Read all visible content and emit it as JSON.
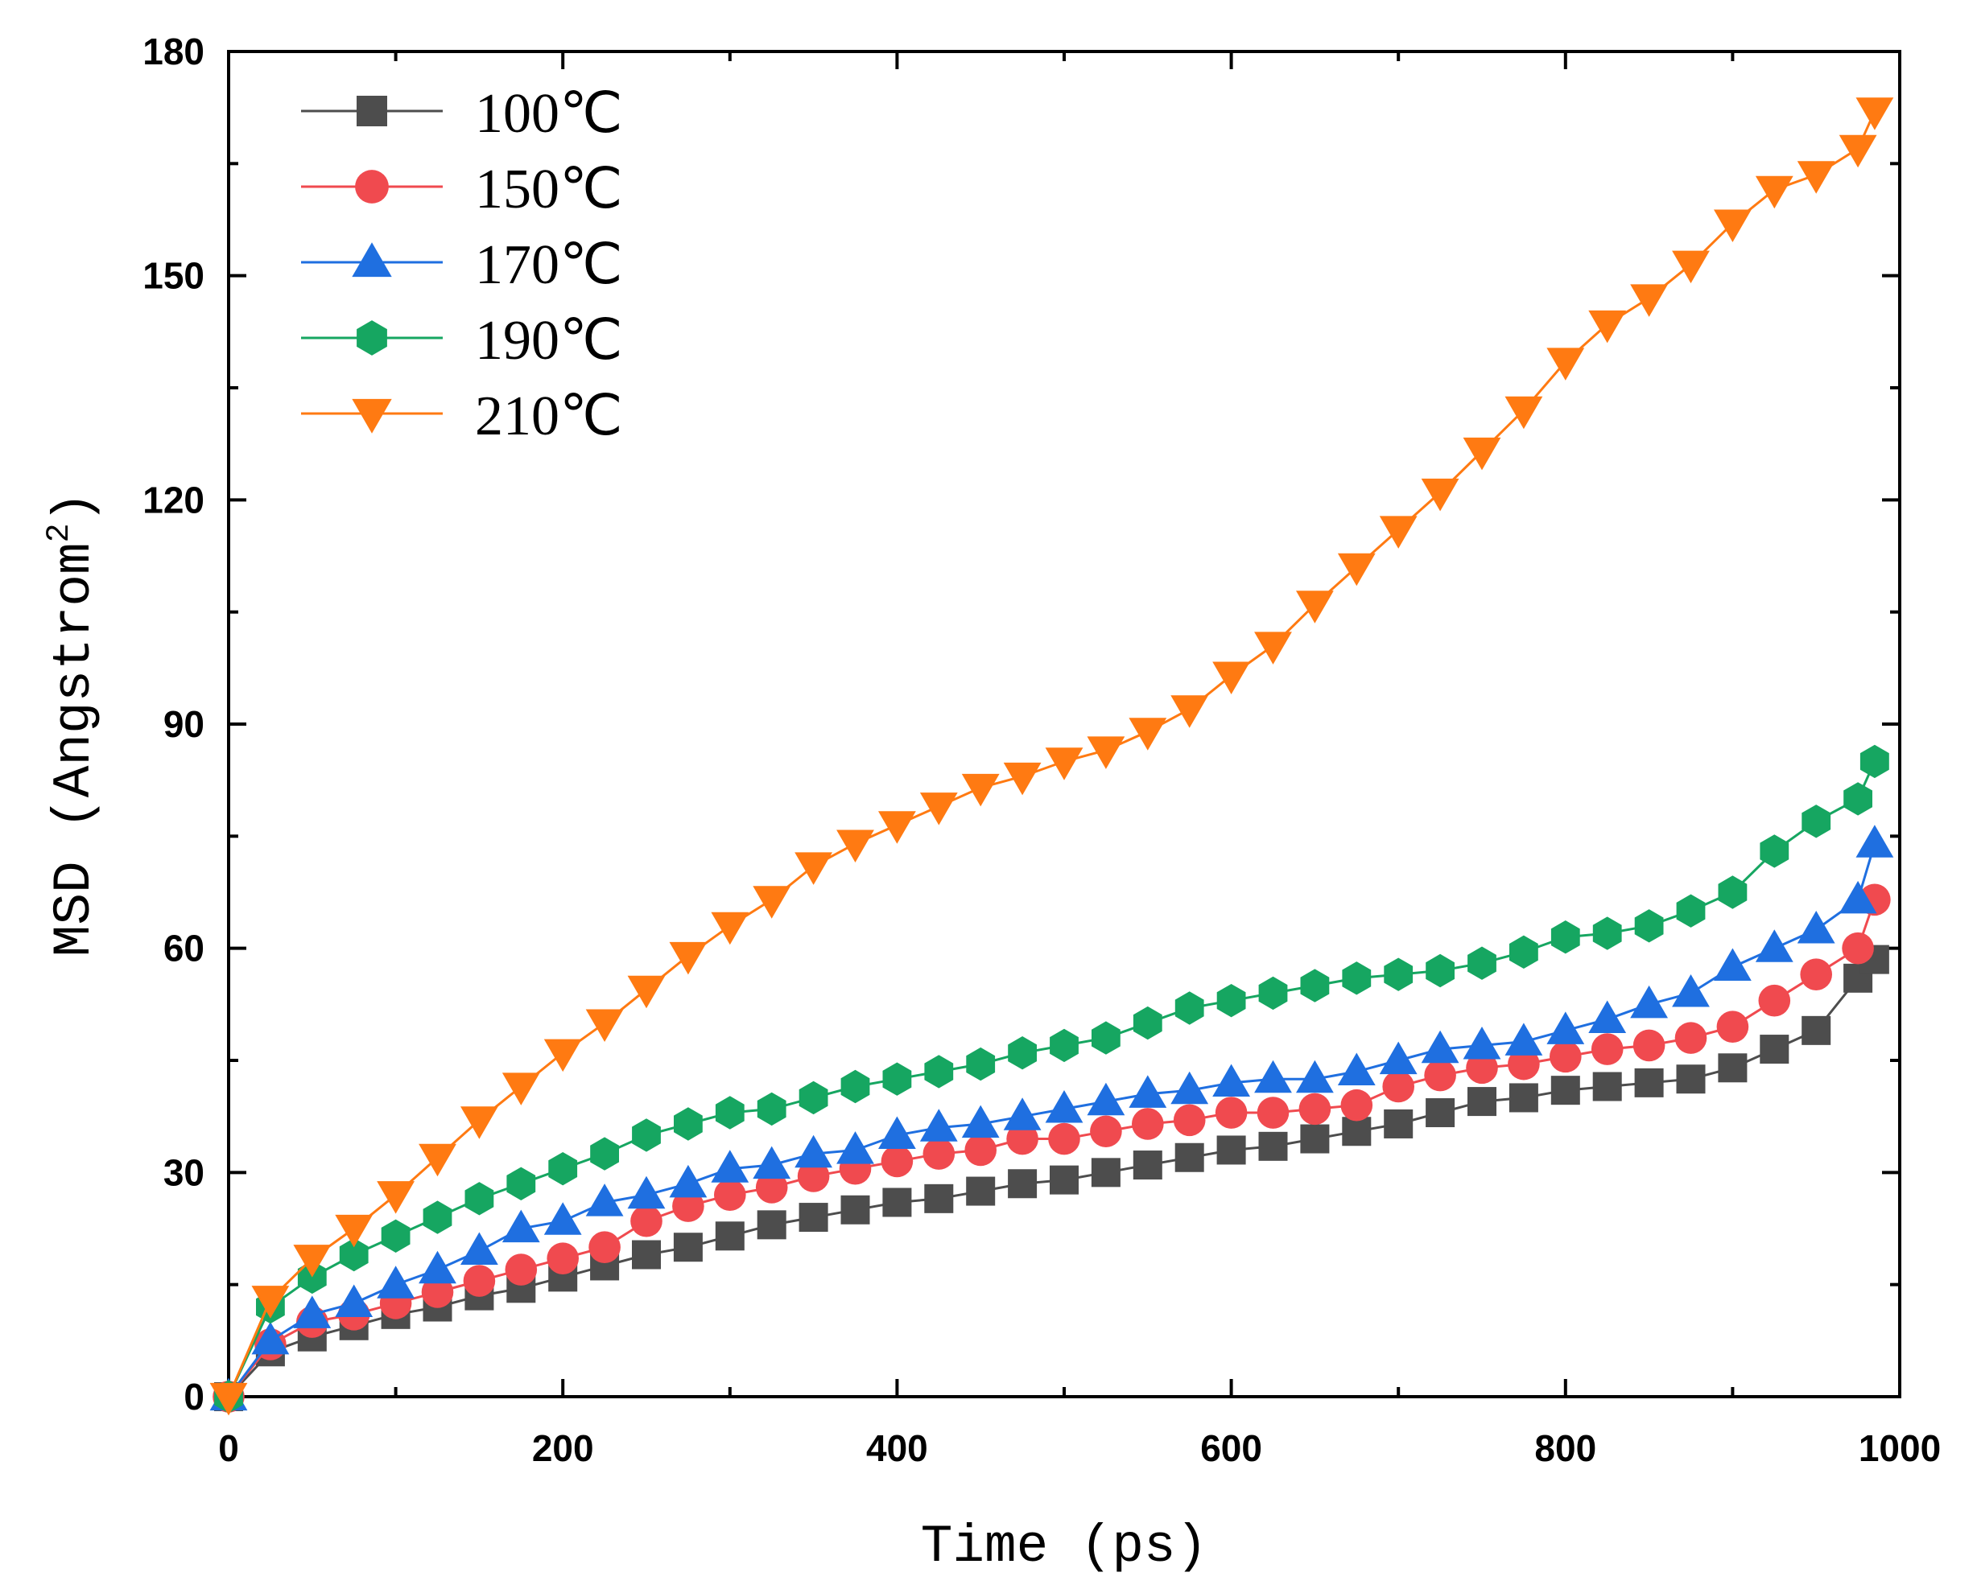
{
  "chart_data": {
    "type": "line",
    "xlabel": "Time (ps)",
    "ylabel_main": "MSD (Angstrom",
    "ylabel_sup": "2",
    "ylabel_close": ")",
    "xlim": [
      0,
      1000
    ],
    "ylim": [
      0,
      180
    ],
    "xticks": [
      "0",
      "200",
      "400",
      "600",
      "800",
      "1000"
    ],
    "yticks": [
      "0",
      "30",
      "60",
      "90",
      "120",
      "150",
      "180"
    ],
    "grid": false,
    "legend_position": "top-left",
    "x": [
      0,
      25,
      50,
      75,
      100,
      125,
      150,
      175,
      200,
      225,
      250,
      275,
      300,
      325,
      350,
      375,
      400,
      425,
      450,
      475,
      500,
      525,
      550,
      575,
      600,
      625,
      650,
      675,
      700,
      725,
      750,
      775,
      800,
      825,
      850,
      875,
      900,
      925,
      950,
      975,
      985
    ],
    "series": [
      {
        "name": "100℃",
        "color": "#4d4d4d",
        "marker": "square",
        "values": [
          0,
          6,
          8,
          9.5,
          11,
          12,
          13.5,
          14.5,
          16,
          17.5,
          19,
          20,
          21.5,
          23,
          24,
          25,
          26,
          26.5,
          27.5,
          28.5,
          29,
          30,
          31,
          32,
          33,
          33.5,
          34.5,
          35.5,
          36.5,
          38,
          39.5,
          40,
          41,
          41.5,
          42,
          42.5,
          44,
          46.5,
          49,
          56,
          58.5
        ]
      },
      {
        "name": "150℃",
        "color": "#f04a4f",
        "marker": "circle",
        "values": [
          0,
          7,
          10,
          11,
          12.5,
          14,
          15.5,
          17,
          18.5,
          20,
          23.5,
          25.5,
          27,
          28,
          29.5,
          30.5,
          31.5,
          32.5,
          33,
          34.5,
          34.5,
          35.5,
          36.5,
          37,
          38,
          38,
          38.5,
          39,
          41.5,
          43,
          44,
          44.5,
          45.5,
          46.5,
          47,
          48,
          49.5,
          53,
          56.5,
          60,
          66.5
        ]
      },
      {
        "name": "170℃",
        "color": "#1f6fe0",
        "marker": "triangle-up",
        "values": [
          0,
          7.5,
          11,
          12.5,
          15,
          17,
          19.5,
          22.5,
          23.5,
          26,
          27,
          28.5,
          30.5,
          31,
          32.5,
          33,
          35,
          36,
          36.5,
          37.5,
          38.5,
          39.5,
          40.5,
          41,
          42,
          42.5,
          42.5,
          43.5,
          45,
          46.5,
          47,
          47.5,
          49,
          50.5,
          52.5,
          54,
          57.5,
          60,
          62.5,
          66.5,
          74
        ]
      },
      {
        "name": "190℃",
        "color": "#16a661",
        "marker": "hexagon",
        "values": [
          0,
          12,
          16,
          19,
          21.5,
          24,
          26.5,
          28.5,
          30.5,
          32.5,
          35,
          36.5,
          38,
          38.5,
          40,
          41.5,
          42.5,
          43.5,
          44.5,
          46,
          47,
          48,
          50,
          52,
          53,
          54,
          55,
          56,
          56.5,
          57,
          58,
          59.5,
          61.5,
          62,
          63,
          65,
          67.5,
          73,
          77,
          80,
          85
        ]
      },
      {
        "name": "210℃",
        "color": "#ff7a12",
        "marker": "triangle-down",
        "values": [
          0,
          13,
          18.5,
          22.5,
          27,
          32,
          37,
          41.5,
          46,
          50,
          54.5,
          59,
          63,
          66.5,
          71,
          74,
          76.5,
          79,
          81.5,
          83,
          85,
          86.5,
          89,
          92,
          96.5,
          100.5,
          106,
          111,
          116,
          121,
          126.5,
          132,
          138.5,
          143.5,
          147,
          151.5,
          157,
          161.5,
          163.5,
          167,
          172
        ]
      }
    ]
  }
}
